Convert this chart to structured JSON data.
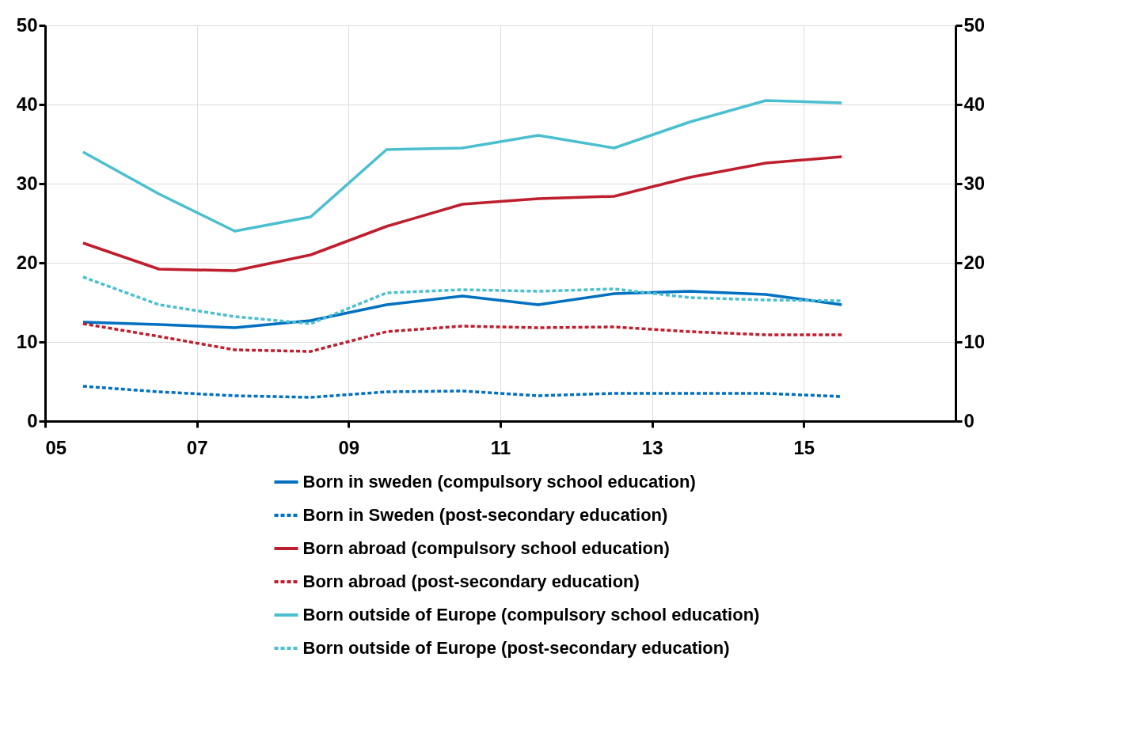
{
  "chart_data": {
    "type": "line",
    "x": [
      5.5,
      6.5,
      7.5,
      8.5,
      9.5,
      10.5,
      11.5,
      12.5,
      13.5,
      14.5,
      15.5
    ],
    "series": [
      {
        "name": "Born in sweden (compulsory school education)",
        "color": "#0070c0",
        "line_style": "solid",
        "values": [
          12.5,
          12.2,
          11.8,
          12.7,
          14.7,
          15.8,
          14.7,
          16.1,
          16.4,
          16.0,
          14.7
        ]
      },
      {
        "name": "Born in Sweden (post-secondary education)",
        "color": "#0070c0",
        "line_style": "dashed",
        "values": [
          4.4,
          3.7,
          3.2,
          3.0,
          3.7,
          3.8,
          3.2,
          3.5,
          3.5,
          3.5,
          3.1
        ]
      },
      {
        "name": "Born abroad (compulsory school education)",
        "color": "#be1e2d",
        "line_style": "solid",
        "values": [
          22.5,
          19.2,
          19.0,
          21.0,
          24.6,
          27.4,
          28.1,
          28.4,
          30.8,
          32.6,
          33.4
        ]
      },
      {
        "name": "Born abroad (post-secondary education)",
        "color": "#be1e2d",
        "line_style": "dashed",
        "values": [
          12.3,
          10.7,
          9.0,
          8.8,
          11.3,
          12.0,
          11.8,
          11.9,
          11.3,
          10.9,
          10.9
        ]
      },
      {
        "name": "Born outside of Europe (compulsory school education)",
        "color": "#4bbfcf",
        "line_style": "solid",
        "values": [
          34.0,
          28.7,
          24.0,
          25.8,
          34.3,
          34.5,
          36.1,
          34.5,
          37.8,
          40.5,
          40.2
        ]
      },
      {
        "name": "Born outside of Europe (post-secondary education)",
        "color": "#4bbfcf",
        "line_style": "dashed",
        "values": [
          18.2,
          14.7,
          13.2,
          12.3,
          16.2,
          16.6,
          16.4,
          16.7,
          15.6,
          15.3,
          15.2
        ]
      }
    ],
    "xlim": [
      5,
      17
    ],
    "xticks": [
      {
        "value": 5,
        "label": "05"
      },
      {
        "value": 7,
        "label": "07"
      },
      {
        "value": 9,
        "label": "09"
      },
      {
        "value": 11,
        "label": "11"
      },
      {
        "value": 13,
        "label": "13"
      },
      {
        "value": 15,
        "label": "15"
      }
    ],
    "ylim": [
      0,
      50
    ],
    "yticks": [
      0,
      10,
      20,
      30,
      40,
      50
    ],
    "y2lim": [
      0,
      50
    ],
    "y2ticks": [
      0,
      10,
      20,
      30,
      40,
      50
    ],
    "grid": true,
    "legend": "bottom"
  }
}
